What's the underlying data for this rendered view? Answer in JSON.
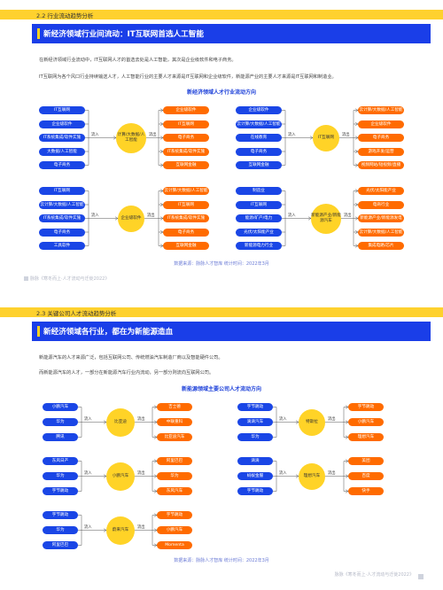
{
  "section1": {
    "header": "2.2  行业流动趋势分析",
    "banner": "新经济领域行业间流动：IT互联网首选人工智能",
    "para1": "在新经济领域行业流动中，IT互联网人才的首选去处是人工智能，其次是企业级软件和电子商务。",
    "para2": "IT互联网为各个风口行业持续输送人才，人工智能行业的主要人才来源是IT互联网和企业级软件，新能源产业的主要人才来源是IT互联网和制造业。",
    "diagram_title": "新经济领域人才行业流动方向",
    "source": "数据来源：脉脉人才智库  统计时间：2022年3月",
    "groups": [
      {
        "left": [
          "IT互联网",
          "企业级软件",
          "IT系统集成/软件实施",
          "大数据/人工智能",
          "电子商务"
        ],
        "center": "计算/大数据/人工智能",
        "in_label": "流入",
        "out_label": "流出",
        "right": [
          "企业级软件",
          "IT互联网",
          "电子商务",
          "IT系统集成/软件实施",
          "互联网金融"
        ]
      },
      {
        "left": [
          "企业级软件",
          "云计算/大数据/人工智能",
          "在线教育",
          "电子商务",
          "互联网金融"
        ],
        "center": "IT互联网",
        "in_label": "流入",
        "out_label": "流出",
        "right": [
          "云计算/大数据/人工智能",
          "企业级软件",
          "电子商务",
          "游戏开发/运营",
          "视频网站/短视频/直播"
        ]
      },
      {
        "left": [
          "IT互联网",
          "云计算/大数据/人工智能",
          "IT系统集成/软件实施",
          "电子商务",
          "工具软件"
        ],
        "center": "企业级软件",
        "in_label": "流入",
        "out_label": "流出",
        "right": [
          "云计算/大数据/人工智能",
          "IT互联网",
          "IT系统集成/软件实施",
          "电子商务",
          "互联网金融"
        ]
      },
      {
        "left": [
          "制造业",
          "IT互联网",
          "能源/矿产/电力",
          "光伏/太阳能产业",
          "新能源电力行业"
        ],
        "center": "新能源产业/新能源汽车",
        "in_label": "流入",
        "out_label": "流出",
        "right": [
          "光伏/太阳能产业",
          "电商行业",
          "新能源产业/新能源发电",
          "云计算/大数据/人工智能",
          "集成电路/芯片"
        ]
      }
    ],
    "footer": "脉脉《寒冬而上·人才流动与迁徙2022》"
  },
  "section2": {
    "header": "2.3  关键公司人才流动趋势分析",
    "banner": "新经济领域各行业，都在为新能源造血",
    "para1": "新能源汽车的人才来源广泛，包括互联网公司、传统燃油汽车制造厂商以及智能硬件公司。",
    "para2": "而新能源汽车的人才，一部分在新能源汽车行业内流动，另一部分则流向互联网公司。",
    "diagram_title": "新能源领域主要公司人才流动方向",
    "source": "数据来源：脉脉人才智库  统计时间：2022年3月",
    "groups": [
      {
        "left": [
          "小鹏汽车",
          "华为",
          "腾讯"
        ],
        "center": "比亚迪",
        "in_label": "流入",
        "out_label": "流出",
        "right": [
          "吉士德",
          "中联重科",
          "比亚迪汽车"
        ]
      },
      {
        "left": [
          "字节跳动",
          "滴滴汽车",
          "华为"
        ],
        "center": "特斯拉",
        "in_label": "流入",
        "out_label": "流出",
        "right": [
          "字节跳动",
          "小鹏汽车",
          "理想汽车"
        ]
      },
      {
        "left": [
          "东风日产",
          "华为",
          "字节跳动"
        ],
        "center": "小鹏汽车",
        "in_label": "流入",
        "out_label": "流出",
        "right": [
          "阿里巴巴",
          "华为",
          "东风汽车"
        ]
      },
      {
        "left": [
          "滴滴",
          "蚂蚁金服",
          "字节跳动"
        ],
        "center": "理想汽车",
        "in_label": "流入",
        "out_label": "流出",
        "right": [
          "美团",
          "百度",
          "快手"
        ]
      },
      {
        "left": [
          "字节跳动",
          "华为",
          "阿里巴巴"
        ],
        "center": "蔚来汽车",
        "in_label": "流入",
        "out_label": "流出",
        "right": [
          "字节跳动",
          "小鹏汽车",
          "Momenta"
        ]
      }
    ],
    "footer": "脉脉《寒冬而上·人才流动与迁徙2022》"
  },
  "colors": {
    "accent_blue": "#1a3ee8",
    "accent_yellow": "#ffd21f",
    "accent_orange": "#ff6b00"
  }
}
